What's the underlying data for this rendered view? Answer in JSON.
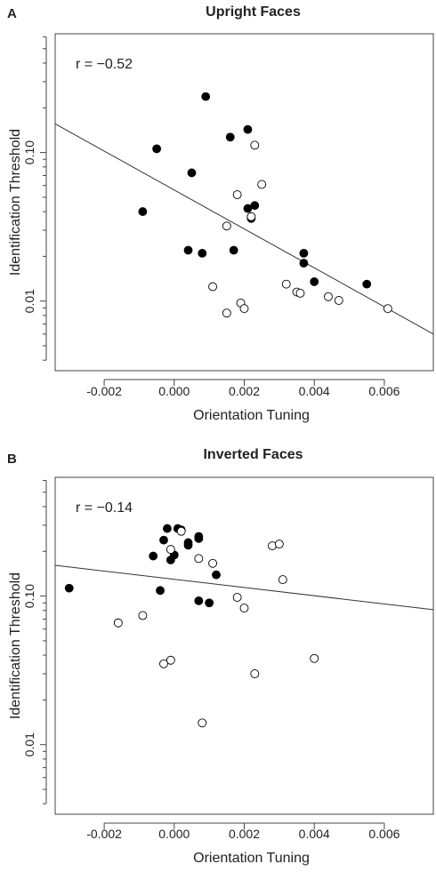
{
  "chart_data": [
    {
      "type": "scatter",
      "panel_label": "A",
      "title": "Upright Faces",
      "xlabel": "Orientation Tuning",
      "ylabel": "Identification Threshold",
      "y_scale": "log",
      "x_ticks": [
        "-0.002",
        "0.000",
        "0.002",
        "0.004",
        "0.006"
      ],
      "x_tick_values": [
        -0.002,
        0.0,
        0.002,
        0.004,
        0.006
      ],
      "y_ticks": [
        "0.01",
        "0.10"
      ],
      "y_tick_values": [
        0.01,
        0.1
      ],
      "xlim": [
        -0.0034,
        0.0074
      ],
      "ylim": [
        0.0034,
        0.63
      ],
      "annotation": "r = −0.52",
      "fit_line": {
        "x": [
          -0.0034,
          0.0074
        ],
        "y": [
          0.156,
          0.006
        ]
      },
      "series": [
        {
          "marker": "filled",
          "color": "#000000",
          "points": [
            [
              -0.0009,
              0.04
            ],
            [
              -0.0005,
              0.106
            ],
            [
              0.0004,
              0.022
            ],
            [
              0.0005,
              0.073
            ],
            [
              0.0008,
              0.021
            ],
            [
              0.0009,
              0.238
            ],
            [
              0.0016,
              0.127
            ],
            [
              0.0017,
              0.022
            ],
            [
              0.0021,
              0.143
            ],
            [
              0.0021,
              0.042
            ],
            [
              0.0022,
              0.036
            ],
            [
              0.0023,
              0.044
            ],
            [
              0.0037,
              0.018
            ],
            [
              0.0037,
              0.021
            ],
            [
              0.004,
              0.0135
            ],
            [
              0.0055,
              0.013
            ]
          ]
        },
        {
          "marker": "open",
          "color": "#000000",
          "points": [
            [
              0.0011,
              0.0125
            ],
            [
              0.0015,
              0.032
            ],
            [
              0.0015,
              0.0083
            ],
            [
              0.0018,
              0.052
            ],
            [
              0.0019,
              0.0097
            ],
            [
              0.002,
              0.0089
            ],
            [
              0.0022,
              0.037
            ],
            [
              0.0023,
              0.112
            ],
            [
              0.0025,
              0.061
            ],
            [
              0.0032,
              0.013
            ],
            [
              0.0035,
              0.0115
            ],
            [
              0.0036,
              0.0113
            ],
            [
              0.0044,
              0.0107
            ],
            [
              0.0047,
              0.0101
            ],
            [
              0.0061,
              0.0089
            ]
          ]
        }
      ]
    },
    {
      "type": "scatter",
      "panel_label": "B",
      "title": "Inverted Faces",
      "xlabel": "Orientation Tuning",
      "ylabel": "Identification Threshold",
      "y_scale": "log",
      "x_ticks": [
        "-0.002",
        "0.000",
        "0.002",
        "0.004",
        "0.006"
      ],
      "x_tick_values": [
        -0.002,
        0.0,
        0.002,
        0.004,
        0.006
      ],
      "y_ticks": [
        "0.01",
        "0.10"
      ],
      "y_tick_values": [
        0.01,
        0.1
      ],
      "xlim": [
        -0.0034,
        0.0074
      ],
      "ylim": [
        0.0034,
        0.63
      ],
      "annotation": "r = −0.14",
      "fit_line": {
        "x": [
          -0.0034,
          0.0074
        ],
        "y": [
          0.161,
          0.081
        ]
      },
      "series": [
        {
          "marker": "filled",
          "color": "#000000",
          "points": [
            [
              -0.003,
              0.113
            ],
            [
              -0.0006,
              0.186
            ],
            [
              -0.0004,
              0.109
            ],
            [
              -0.0003,
              0.238
            ],
            [
              -0.0002,
              0.285
            ],
            [
              -0.0001,
              0.175
            ],
            [
              0.0,
              0.189
            ],
            [
              0.0001,
              0.285
            ],
            [
              0.0002,
              0.279
            ],
            [
              0.0004,
              0.22
            ],
            [
              0.0004,
              0.229
            ],
            [
              0.0007,
              0.252
            ],
            [
              0.0007,
              0.244
            ],
            [
              0.0007,
              0.093
            ],
            [
              0.001,
              0.09
            ],
            [
              0.0012,
              0.139
            ]
          ]
        },
        {
          "marker": "open",
          "color": "#000000",
          "points": [
            [
              -0.0016,
              0.066
            ],
            [
              -0.0009,
              0.074
            ],
            [
              -0.0003,
              0.035
            ],
            [
              -0.0001,
              0.037
            ],
            [
              -0.0001,
              0.206
            ],
            [
              0.0002,
              0.273
            ],
            [
              0.0007,
              0.179
            ],
            [
              0.0008,
              0.014
            ],
            [
              0.0011,
              0.166
            ],
            [
              0.0018,
              0.098
            ],
            [
              0.002,
              0.083
            ],
            [
              0.0023,
              0.03
            ],
            [
              0.0028,
              0.218
            ],
            [
              0.003,
              0.224
            ],
            [
              0.0031,
              0.129
            ],
            [
              0.004,
              0.038
            ]
          ]
        }
      ]
    }
  ]
}
